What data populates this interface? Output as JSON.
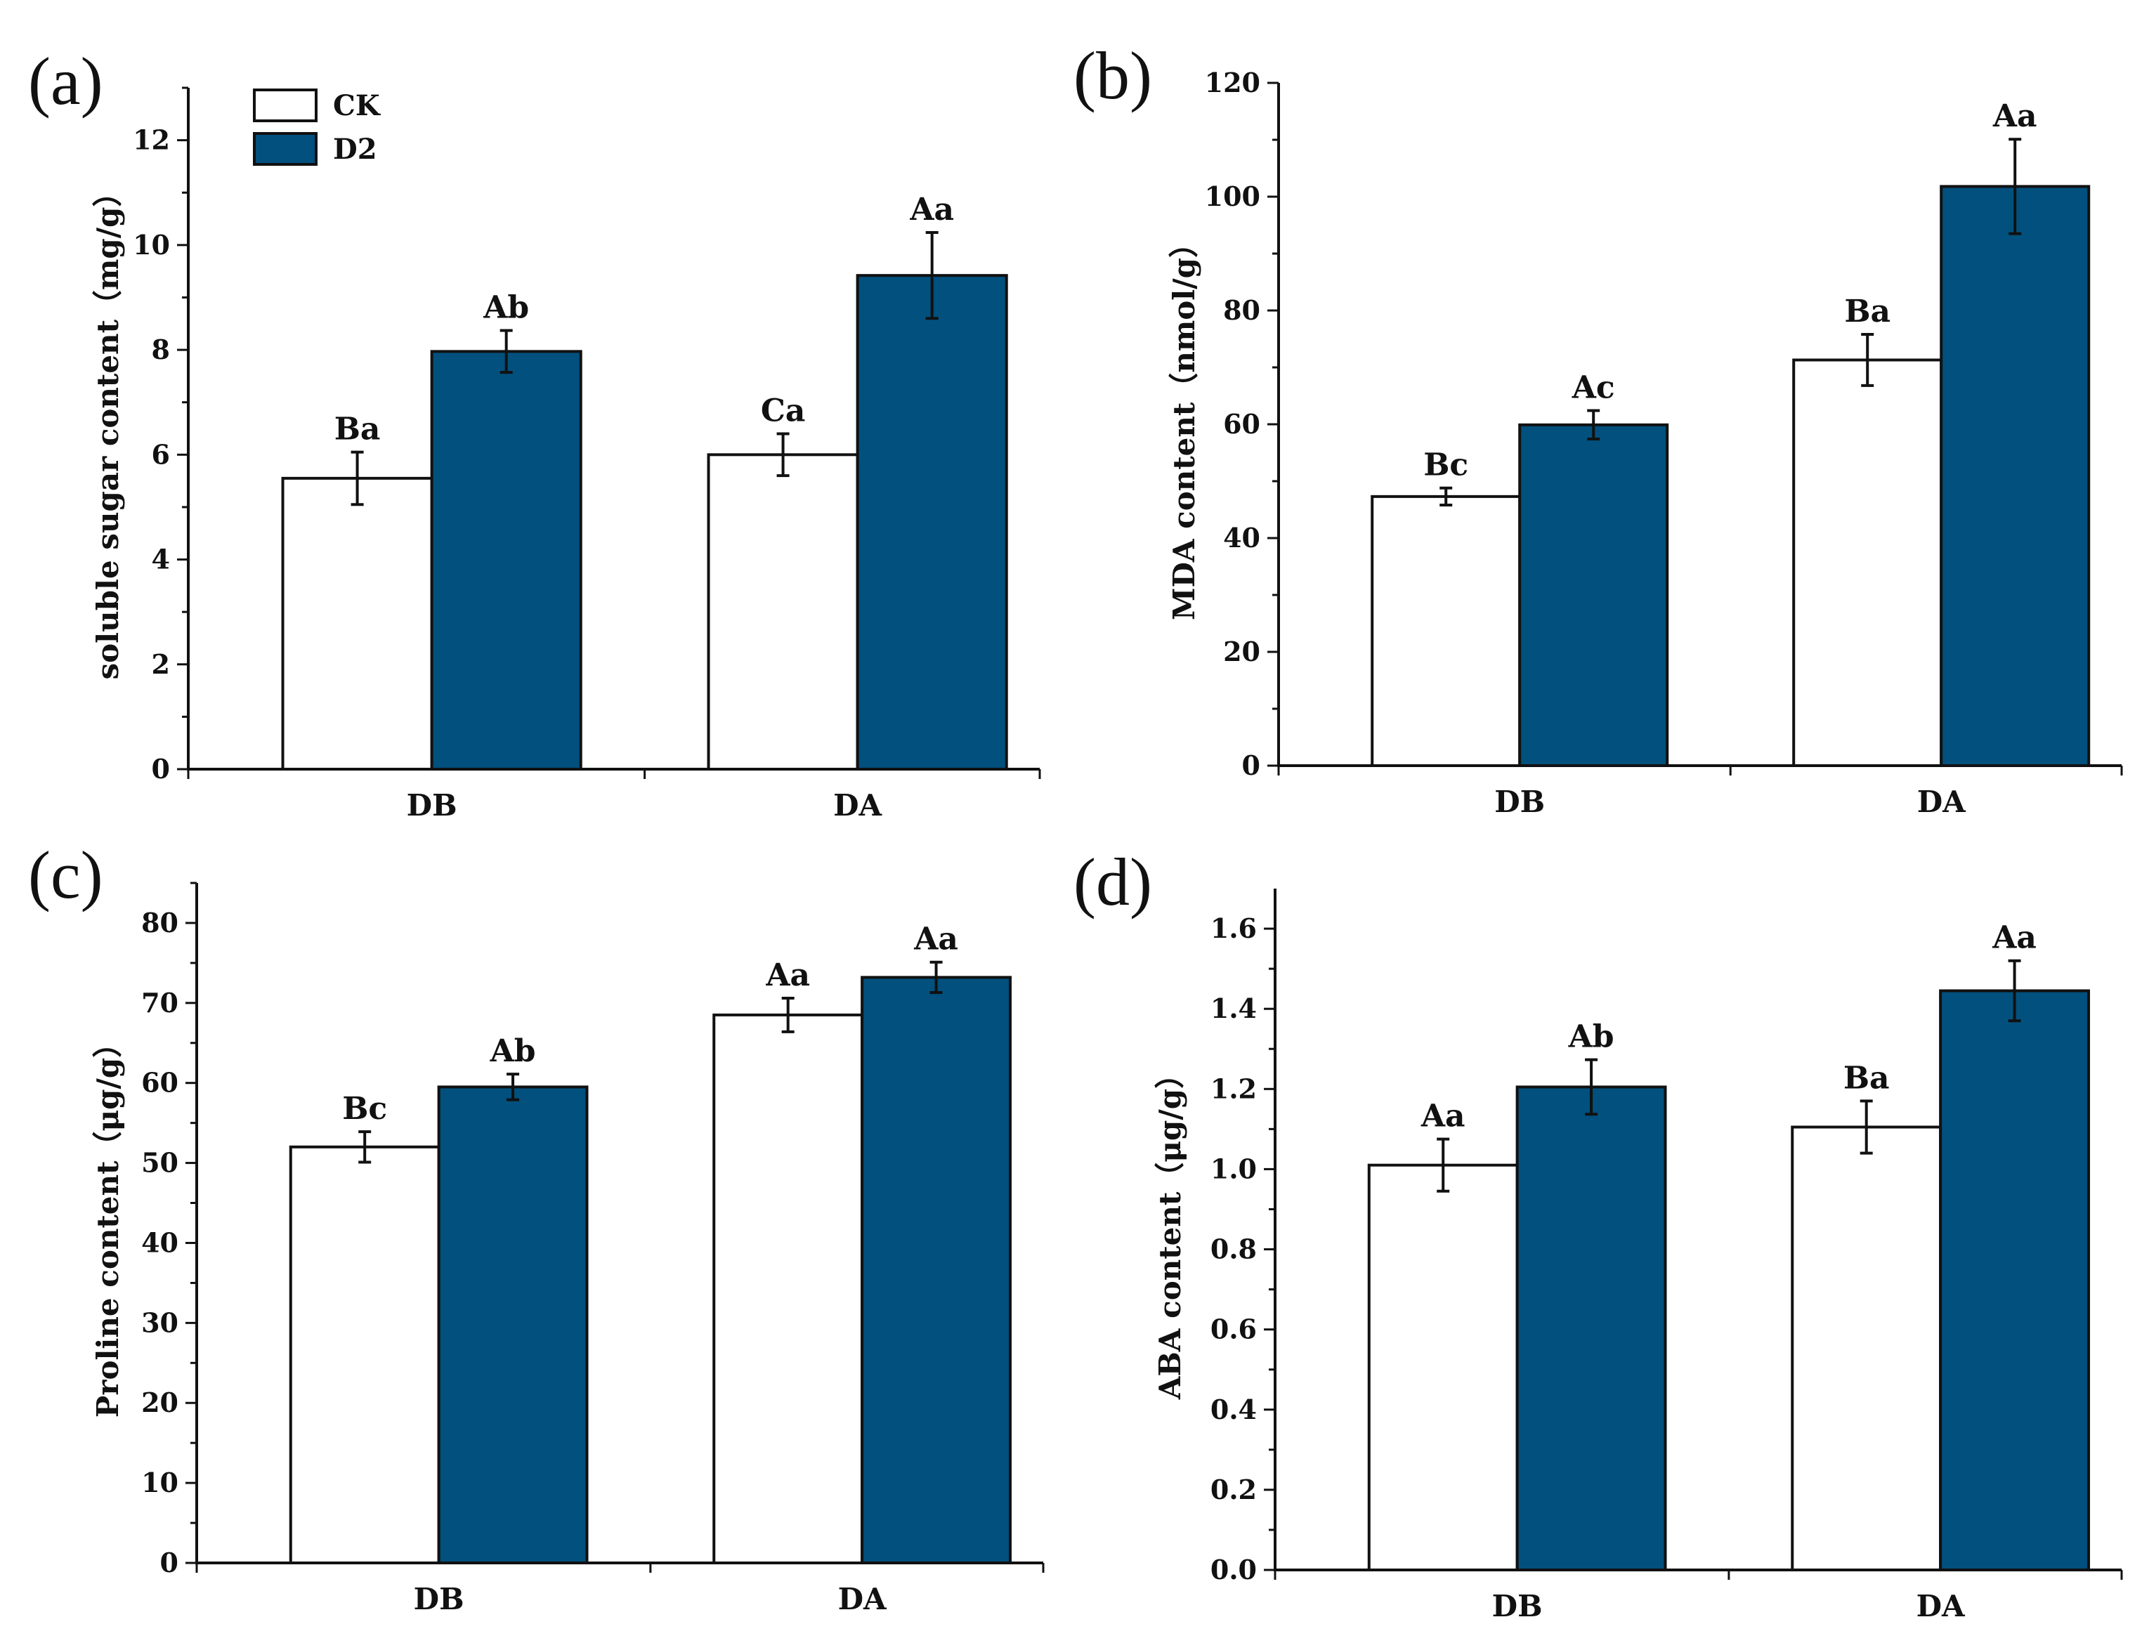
{
  "legend": [
    {
      "name": "CK",
      "color": "#ffffff"
    },
    {
      "name": "D2",
      "color": "#02507d"
    }
  ],
  "chart_data": [
    {
      "type": "bar",
      "panel": "(a)",
      "title": "",
      "ylabel": "soluble sugar content（mg/g）",
      "ylim": [
        0,
        13
      ],
      "yticks": [
        0,
        2,
        4,
        6,
        8,
        10,
        12
      ],
      "tick_decimals": 0,
      "categories": [
        "DB",
        "DA"
      ],
      "series": [
        {
          "name": "CK",
          "values": [
            5.55,
            6.0
          ],
          "errors": [
            0.5,
            0.4
          ],
          "labels": [
            "Ba",
            "Ca"
          ]
        },
        {
          "name": "D2",
          "values": [
            7.97,
            9.42
          ],
          "errors": [
            0.4,
            0.82
          ],
          "labels": [
            "Ab",
            "Aa"
          ]
        }
      ]
    },
    {
      "type": "bar",
      "panel": "(b)",
      "title": "",
      "ylabel": "MDA content（nmol/g）",
      "ylim": [
        0,
        120
      ],
      "yticks": [
        0,
        20,
        40,
        60,
        80,
        100,
        120
      ],
      "tick_decimals": 0,
      "categories": [
        "DB",
        "DA"
      ],
      "series": [
        {
          "name": "CK",
          "values": [
            47.3,
            71.3
          ],
          "errors": [
            1.5,
            4.5
          ],
          "labels": [
            "Bc",
            "Ba"
          ]
        },
        {
          "name": "D2",
          "values": [
            59.9,
            101.8
          ],
          "errors": [
            2.5,
            8.3
          ],
          "labels": [
            "Ac",
            "Aa"
          ]
        }
      ]
    },
    {
      "type": "bar",
      "panel": "(c)",
      "title": "",
      "ylabel": "Proline content（μg/g）",
      "ylim": [
        0,
        85
      ],
      "yticks": [
        0,
        10,
        20,
        30,
        40,
        50,
        60,
        70,
        80
      ],
      "tick_decimals": 0,
      "categories": [
        "DB",
        "DA"
      ],
      "series": [
        {
          "name": "CK",
          "values": [
            52.0,
            68.5
          ],
          "errors": [
            1.9,
            2.1
          ],
          "labels": [
            "Bc",
            "Aa"
          ]
        },
        {
          "name": "D2",
          "values": [
            59.5,
            73.2
          ],
          "errors": [
            1.6,
            1.9
          ],
          "labels": [
            "Ab",
            "Aa"
          ]
        }
      ]
    },
    {
      "type": "bar",
      "panel": "(d)",
      "title": "",
      "ylabel": "ABA content（μg/g）",
      "ylim": [
        0,
        1.7
      ],
      "yticks": [
        0.0,
        0.2,
        0.4,
        0.6,
        0.8,
        1.0,
        1.2,
        1.4,
        1.6
      ],
      "tick_decimals": 1,
      "categories": [
        "DB",
        "DA"
      ],
      "series": [
        {
          "name": "CK",
          "values": [
            1.01,
            1.105
          ],
          "errors": [
            0.065,
            0.065
          ],
          "labels": [
            "Aa",
            "Ba"
          ]
        },
        {
          "name": "D2",
          "values": [
            1.205,
            1.445
          ],
          "errors": [
            0.068,
            0.075
          ],
          "labels": [
            "Ab",
            "Aa"
          ]
        }
      ]
    }
  ]
}
